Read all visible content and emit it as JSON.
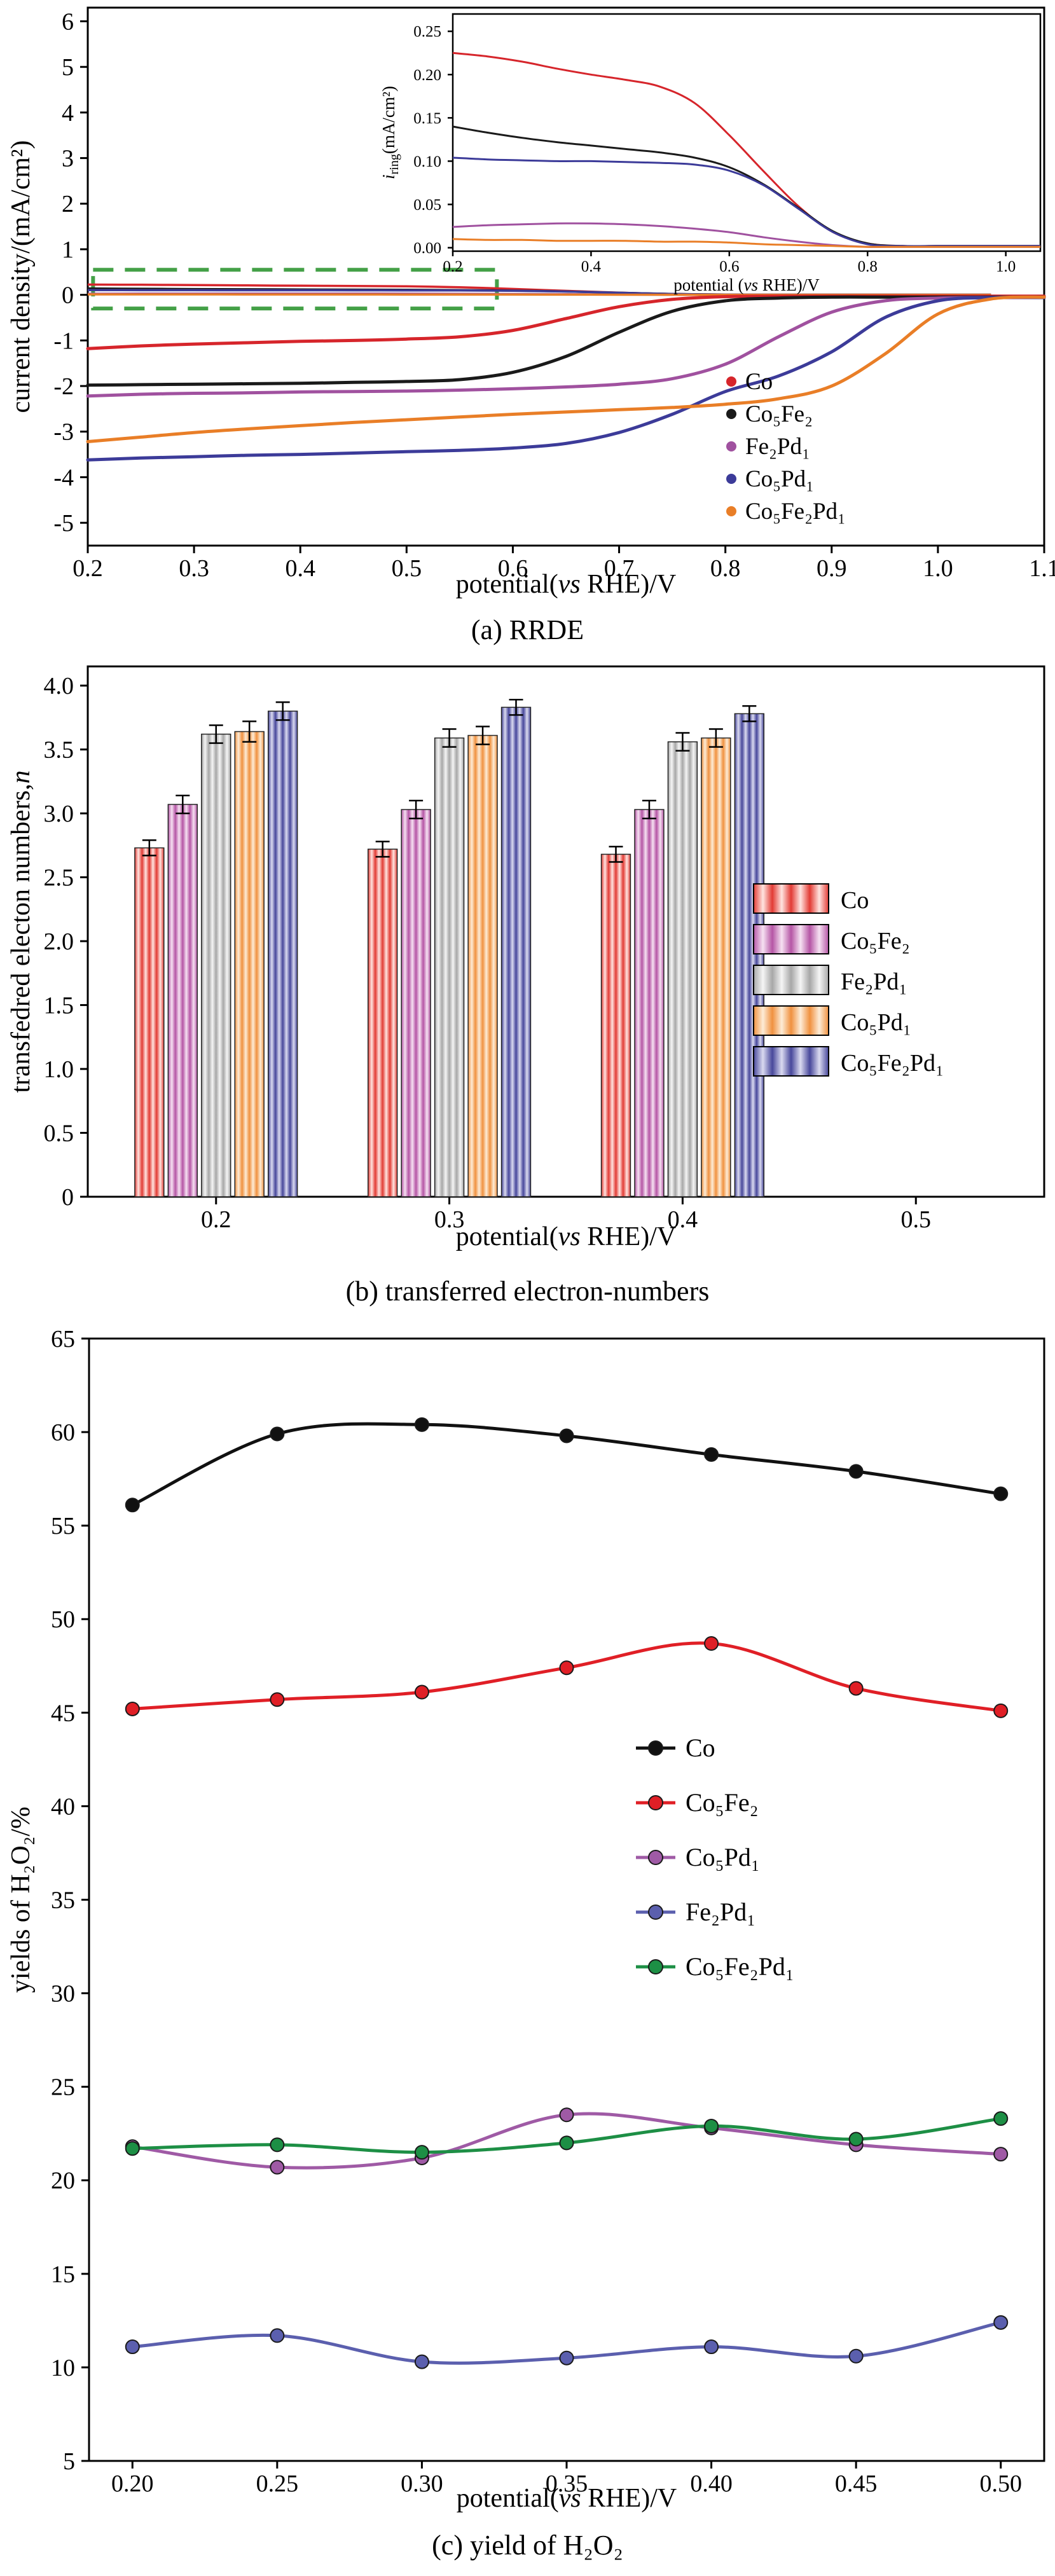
{
  "captions": {
    "a": "(a) RRDE",
    "b": "(b) transferred electron-numbers",
    "c": "(c) yield of H₂O₂"
  },
  "chart_data": [
    {
      "id": "rrde",
      "type": "line",
      "xlabel": "potential(vs RHE)/V",
      "ylabel": "current density/(mA/cm²)",
      "xlim": [
        0.2,
        1.1
      ],
      "ylim": [
        -5.5,
        6.3
      ],
      "xticks": [
        0.2,
        0.3,
        0.4,
        0.5,
        0.6,
        0.7,
        0.8,
        0.9,
        1.0,
        1.1
      ],
      "xtick_labels": [
        "0.2",
        "0.3",
        "0.4",
        "0.5",
        "0.6",
        "0.7",
        "0.8",
        "0.9",
        "1.0",
        "1.1"
      ],
      "yticks": [
        6,
        5,
        4,
        3,
        2,
        1,
        0,
        -1,
        -2,
        -3,
        -4,
        -5
      ],
      "ytick_labels": [
        "6",
        "5",
        "4",
        "3",
        "2",
        "1",
        "0",
        "-1",
        "-2",
        "-3",
        "-4",
        "-5"
      ],
      "x": [
        0.2,
        0.25,
        0.3,
        0.35,
        0.4,
        0.45,
        0.5,
        0.55,
        0.6,
        0.65,
        0.7,
        0.75,
        0.8,
        0.85,
        0.9,
        0.95,
        1.0,
        1.05,
        1.1
      ],
      "series": [
        {
          "name": "Co",
          "color": "#d6252b",
          "y": [
            -1.18,
            -1.12,
            -1.08,
            -1.05,
            -1.02,
            -1.0,
            -0.97,
            -0.92,
            -0.78,
            -0.52,
            -0.26,
            -0.1,
            -0.04,
            -0.03,
            -0.03,
            -0.03,
            -0.03,
            -0.03,
            -0.03
          ]
        },
        {
          "name": "Co₅Fe₂",
          "color": "#1a1a1a",
          "y": [
            -1.98,
            -1.97,
            -1.96,
            -1.95,
            -1.94,
            -1.92,
            -1.9,
            -1.86,
            -1.7,
            -1.35,
            -0.82,
            -0.36,
            -0.13,
            -0.07,
            -0.05,
            -0.05,
            -0.05,
            -0.05,
            -0.05
          ]
        },
        {
          "name": "Fe₂Pd₁",
          "color": "#a0519f",
          "y": [
            -2.22,
            -2.18,
            -2.16,
            -2.15,
            -2.13,
            -2.12,
            -2.11,
            -2.09,
            -2.06,
            -2.02,
            -1.96,
            -1.84,
            -1.52,
            -0.92,
            -0.38,
            -0.13,
            -0.07,
            -0.06,
            -0.06
          ]
        },
        {
          "name": "Co₅Pd₁",
          "color": "#3c3b99",
          "y": [
            -3.62,
            -3.58,
            -3.55,
            -3.52,
            -3.5,
            -3.47,
            -3.44,
            -3.41,
            -3.36,
            -3.26,
            -3.02,
            -2.62,
            -2.12,
            -1.78,
            -1.25,
            -0.5,
            -0.13,
            -0.06,
            -0.06
          ]
        },
        {
          "name": "Co₅Fe₂Pd₁",
          "color": "#e97e27",
          "y": [
            -3.22,
            -3.12,
            -3.02,
            -2.94,
            -2.87,
            -2.8,
            -2.74,
            -2.68,
            -2.62,
            -2.57,
            -2.52,
            -2.47,
            -2.4,
            -2.28,
            -2.0,
            -1.3,
            -0.42,
            -0.09,
            -0.05
          ]
        }
      ],
      "ring": {
        "x": [
          0.2,
          0.25,
          0.3,
          0.35,
          0.4,
          0.45,
          0.5,
          0.55,
          0.6,
          0.65,
          0.7,
          0.75,
          0.8,
          0.85,
          0.9,
          0.95,
          1.0,
          1.05
        ],
        "series": [
          {
            "name": "Co",
            "color": "#d6252b",
            "y": [
              0.225,
              0.221,
              0.215,
              0.207,
              0.2,
              0.194,
              0.186,
              0.167,
              0.13,
              0.088,
              0.048,
              0.018,
              0.005,
              0.002,
              0.002,
              0.002,
              0.002,
              0.002
            ]
          },
          {
            "name": "Co₅Fe₂",
            "color": "#1a1a1a",
            "y": [
              0.14,
              0.133,
              0.127,
              0.122,
              0.118,
              0.114,
              0.11,
              0.104,
              0.093,
              0.073,
              0.046,
              0.019,
              0.005,
              0.002,
              0.002,
              0.002,
              0.002,
              0.002
            ]
          },
          {
            "name": "Fe₂Pd₁",
            "color": "#a0519f",
            "y": [
              0.024,
              0.026,
              0.027,
              0.028,
              0.028,
              0.027,
              0.025,
              0.022,
              0.018,
              0.012,
              0.007,
              0.003,
              0.001,
              0.001,
              0.001,
              0.001,
              0.001,
              0.001
            ]
          },
          {
            "name": "Co₅Pd₁",
            "color": "#3c3b99",
            "y": [
              0.104,
              0.102,
              0.101,
              0.1,
              0.1,
              0.099,
              0.098,
              0.096,
              0.089,
              0.072,
              0.045,
              0.018,
              0.004,
              0.002,
              0.002,
              0.002,
              0.002,
              0.002
            ]
          },
          {
            "name": "Co₅Fe₂Pd₁",
            "color": "#e97e27",
            "y": [
              0.01,
              0.009,
              0.009,
              0.008,
              0.008,
              0.008,
              0.007,
              0.007,
              0.006,
              0.004,
              0.003,
              0.002,
              0.001,
              0.001,
              0.001,
              0.001,
              0.001,
              0.001
            ]
          }
        ]
      },
      "highlight_box": {
        "x0": 0.205,
        "x1": 0.585,
        "y0": -0.3,
        "y1": 0.55,
        "color": "#44a047"
      },
      "inset": {
        "xlabel": "potential (vs RHE)/V",
        "ylabel_i": "i",
        "ylabel_sub": "ring",
        "ylabel_rest": "(mA/cm²)",
        "xlim": [
          0.2,
          1.05
        ],
        "ylim": [
          -0.004,
          0.27
        ],
        "xticks": [
          0.2,
          0.4,
          0.6,
          0.8,
          1.0
        ],
        "xtick_labels": [
          "0.2",
          "0.4",
          "0.6",
          "0.8",
          "1.0"
        ],
        "yticks": [
          0.0,
          0.05,
          0.1,
          0.15,
          0.2,
          0.25
        ],
        "ytick_labels": [
          "0.00",
          "0.05",
          "0.10",
          "0.15",
          "0.20",
          "0.25"
        ]
      }
    },
    {
      "id": "electrons",
      "type": "bar",
      "xlabel": "potential(vs RHE)/V",
      "ylabel": "transfedred electon numbers,",
      "ylabel_italic": "n",
      "xlim": [
        0.145,
        0.555
      ],
      "ylim": [
        0,
        4.15
      ],
      "xticks": [
        0.2,
        0.3,
        0.4,
        0.5
      ],
      "xtick_labels": [
        "0.2",
        "0.3",
        "0.4",
        "0.5"
      ],
      "yticks": [
        0,
        0.5,
        1.0,
        1.5,
        2.0,
        2.5,
        3.0,
        3.5,
        4.0
      ],
      "ytick_labels": [
        "0",
        "0.5",
        "1.0",
        "1.5",
        "2.0",
        "2.5",
        "3.0",
        "3.5",
        "4.0"
      ],
      "group_centers": [
        0.2,
        0.3,
        0.4
      ],
      "bar_width": 0.0125,
      "bar_gap": 0.0018,
      "series": [
        {
          "name": "Co",
          "base": "#e23b34",
          "light": "#ffe4e0",
          "values": [
            2.73,
            2.72,
            2.68
          ],
          "errors": [
            0.06,
            0.06,
            0.06
          ]
        },
        {
          "name": "Co₅Fe₂",
          "base": "#b555a5",
          "light": "#f6e1f2",
          "values": [
            3.07,
            3.03,
            3.03
          ],
          "errors": [
            0.07,
            0.07,
            0.07
          ]
        },
        {
          "name": "Fe₂Pd₁",
          "base": "#a7a7a7",
          "light": "#f5f5f5",
          "values": [
            3.62,
            3.59,
            3.56
          ],
          "errors": [
            0.07,
            0.07,
            0.07
          ]
        },
        {
          "name": "Co₅Pd₁",
          "base": "#f0913f",
          "light": "#fdecd7",
          "values": [
            3.64,
            3.61,
            3.59
          ],
          "errors": [
            0.08,
            0.07,
            0.07
          ]
        },
        {
          "name": "Co₅Fe₂Pd₁",
          "base": "#47479b",
          "light": "#dadaf0",
          "values": [
            3.8,
            3.83,
            3.78
          ],
          "errors": [
            0.07,
            0.06,
            0.06
          ]
        }
      ]
    },
    {
      "id": "yield",
      "type": "line",
      "xlabel": "potential(vs RHE)/V",
      "ylabel": "yields of H₂O₂/%",
      "xlim": [
        0.185,
        0.515
      ],
      "ylim": [
        5,
        65
      ],
      "xticks": [
        0.2,
        0.25,
        0.3,
        0.35,
        0.4,
        0.45,
        0.5
      ],
      "xtick_labels": [
        "0.20",
        "0.25",
        "0.30",
        "0.35",
        "0.40",
        "0.45",
        "0.50"
      ],
      "yticks": [
        5,
        10,
        15,
        20,
        25,
        30,
        35,
        40,
        45,
        50,
        55,
        60,
        65
      ],
      "ytick_labels": [
        "5",
        "10",
        "15",
        "20",
        "25",
        "30",
        "35",
        "40",
        "45",
        "50",
        "55",
        "60",
        "65"
      ],
      "x": [
        0.2,
        0.25,
        0.3,
        0.35,
        0.4,
        0.45,
        0.5
      ],
      "series": [
        {
          "name": "Co",
          "color": "#111111",
          "y": [
            56.1,
            59.9,
            60.4,
            59.8,
            58.8,
            57.9,
            56.7
          ]
        },
        {
          "name": "Co₅Fe₂",
          "color": "#e01f26",
          "y": [
            45.2,
            45.7,
            46.1,
            47.4,
            48.7,
            46.3,
            45.1
          ]
        },
        {
          "name": "Co₅Pd₁",
          "color": "#9f5aa5",
          "y": [
            21.8,
            20.7,
            21.2,
            23.5,
            22.8,
            21.9,
            21.4
          ]
        },
        {
          "name": "Fe₂Pd₁",
          "color": "#5b5fae",
          "y": [
            11.1,
            11.7,
            10.3,
            10.5,
            11.1,
            10.6,
            12.4
          ]
        },
        {
          "name": "Co₅Fe₂Pd₁",
          "color": "#1d8f45",
          "y": [
            21.7,
            21.9,
            21.5,
            22.0,
            22.9,
            22.2,
            23.3
          ]
        }
      ]
    }
  ]
}
